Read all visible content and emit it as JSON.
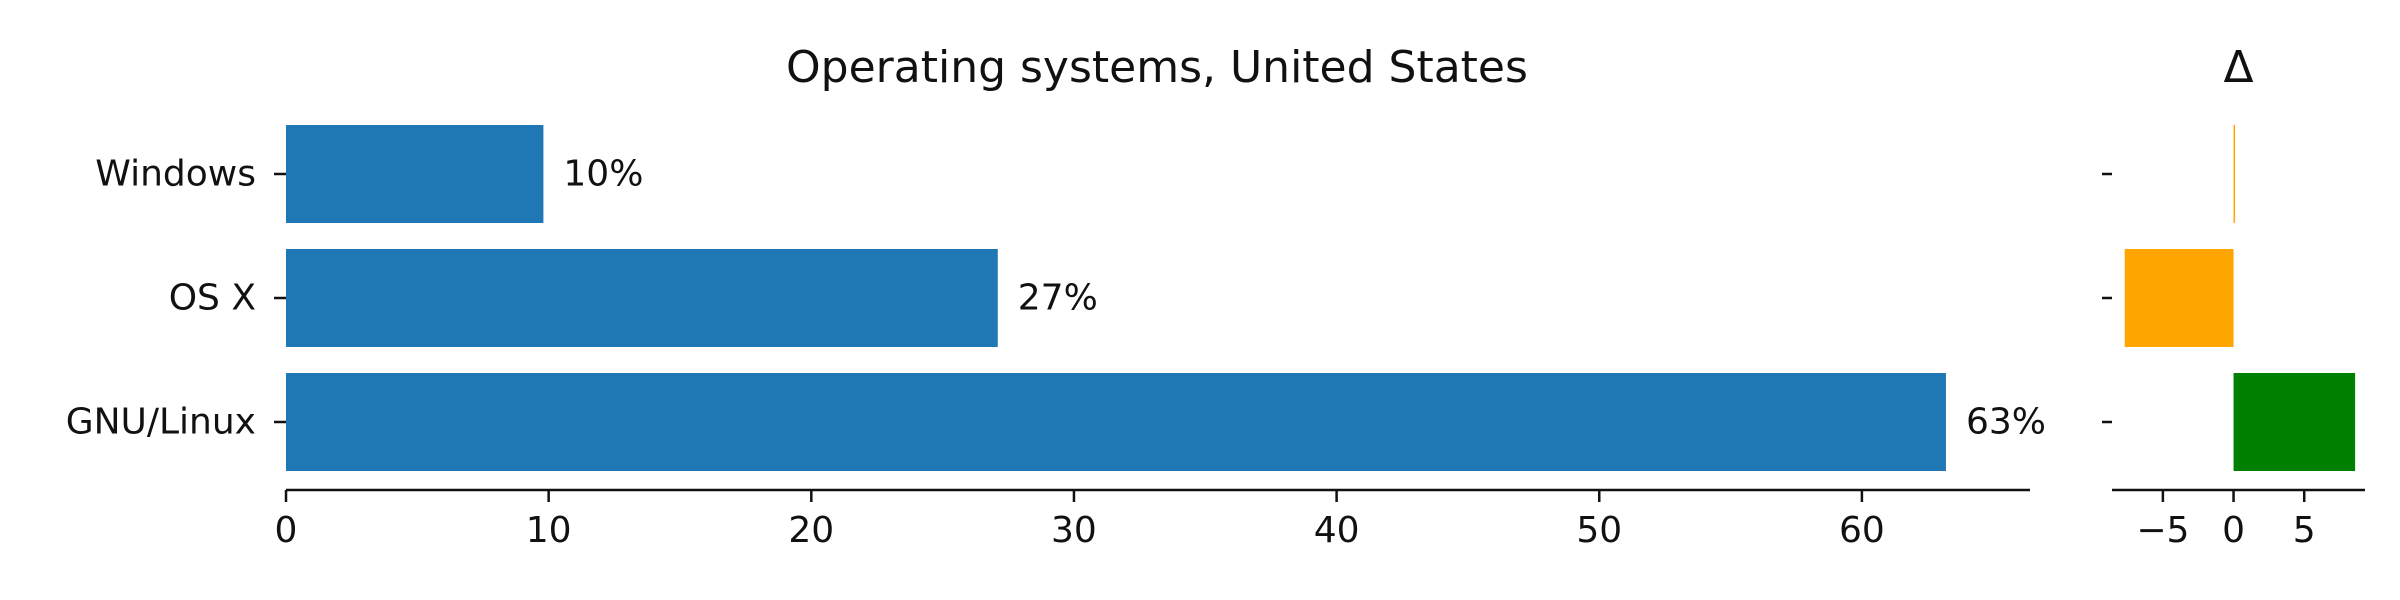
{
  "chart_data": [
    {
      "type": "bar",
      "orientation": "horizontal",
      "title": "Operating systems, United States",
      "categories": [
        "Windows",
        "OS X",
        "GNU/Linux"
      ],
      "values": [
        9.8,
        27.1,
        63.2
      ],
      "value_labels": [
        "10%",
        "27%",
        "63%"
      ],
      "xlim": [
        0,
        66.4
      ],
      "x_ticks": [
        0,
        10,
        20,
        30,
        40,
        50,
        60
      ],
      "x_tick_labels": [
        "0",
        "10",
        "20",
        "30",
        "40",
        "50",
        "60"
      ],
      "bar_color": "#1f77b4",
      "grid": false
    },
    {
      "type": "bar",
      "orientation": "horizontal",
      "title": "Δ",
      "categories": [
        "Windows",
        "OS X",
        "GNU/Linux"
      ],
      "values": [
        0.1,
        -7.7,
        8.6
      ],
      "xlim": [
        -8.6,
        9.3
      ],
      "x_ticks": [
        -5,
        0,
        5
      ],
      "x_tick_labels": [
        "−5",
        "0",
        "5"
      ],
      "bar_colors": [
        "#ffa500",
        "#ffa500",
        "#008000"
      ],
      "grid": false
    }
  ]
}
